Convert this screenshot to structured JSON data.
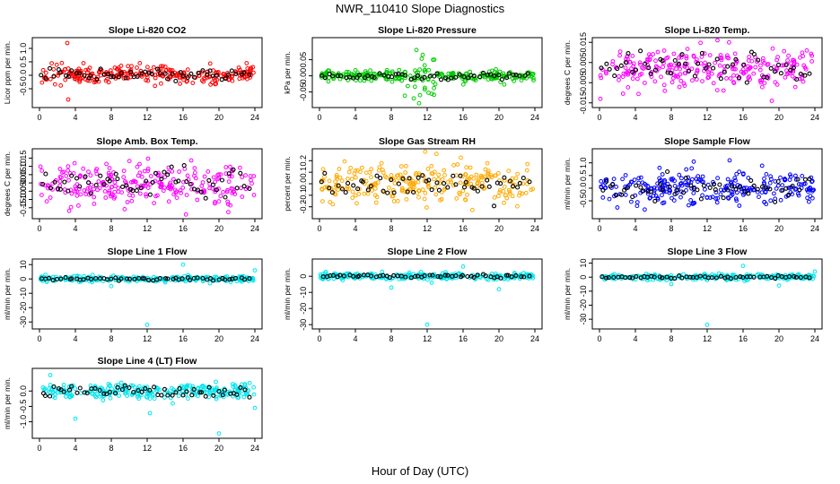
{
  "figure": {
    "title": "NWR_110410  Slope Diagnostics",
    "xlabel": "Hour of Day (UTC)"
  },
  "chart_data": [
    {
      "type": "scatter",
      "title": "Slope Li-820 CO2",
      "ylabel": "Licor ppm per min.",
      "color": "#ff0000",
      "xlim": [
        0,
        24
      ],
      "xticks": [
        0,
        4,
        8,
        12,
        16,
        20,
        24
      ],
      "ylim": [
        -1.1,
        1.3
      ],
      "yticks": [
        -0.5,
        0.0,
        0.5,
        1.0
      ],
      "ytick_labels": [
        "-0.5",
        "0.0",
        "0.5",
        "1.0"
      ],
      "center": 0.02,
      "spread": 0.16,
      "outliers": [
        [
          3.1,
          1.2
        ],
        [
          3.2,
          -0.9
        ],
        [
          4.9,
          0.45
        ]
      ],
      "black_spread": 0.1
    },
    {
      "type": "scatter",
      "title": "Slope Li-820 Pressure",
      "ylabel": "kPa per min.",
      "color": "#00cc00",
      "xlim": [
        0,
        24
      ],
      "xticks": [
        0,
        4,
        8,
        12,
        16,
        20,
        24
      ],
      "ylim": [
        -0.09,
        0.11
      ],
      "yticks": [
        -0.05,
        0.0,
        0.05
      ],
      "ytick_labels": [
        "-0.05",
        "0.00",
        "0.05"
      ],
      "center": 0.0,
      "spread": 0.008,
      "outliers": [
        [
          10.8,
          0.08
        ],
        [
          11.2,
          -0.06
        ],
        [
          10.5,
          -0.07
        ],
        [
          11.5,
          0.065
        ],
        [
          11.1,
          -0.085
        ],
        [
          12.8,
          0.05
        ]
      ],
      "black_spread": 0.006
    },
    {
      "type": "scatter",
      "title": "Slope Li-820 Temp.",
      "ylabel": "degrees C per min.",
      "color": "#ff00ff",
      "xlim": [
        0,
        24
      ],
      "xticks": [
        0,
        4,
        8,
        12,
        16,
        20,
        24
      ],
      "ylim": [
        -0.016,
        0.016
      ],
      "yticks": [
        -0.015,
        -0.005,
        0.005,
        0.015
      ],
      "ytick_labels": [
        "-0.015",
        "-0.005",
        "0.005",
        "0.015"
      ],
      "center": 0.002,
      "spread": 0.005,
      "outliers": [
        [
          0.1,
          -0.013
        ],
        [
          19.2,
          -0.014
        ]
      ],
      "black_spread": 0.004
    },
    {
      "type": "scatter",
      "title": "Slope Amb. Box Temp.",
      "ylabel": "degrees C per min.",
      "color": "#ff00ff",
      "xlim": [
        0,
        24
      ],
      "xticks": [
        0,
        4,
        8,
        12,
        16,
        20,
        24
      ],
      "ylim": [
        -0.2,
        0.19
      ],
      "yticks": [
        -0.15,
        -0.1,
        -0.05,
        0.0,
        0.05,
        0.1,
        0.15
      ],
      "ytick_labels": [
        "-0.15",
        "-0.10",
        "-0.05",
        "0.00",
        "0.05",
        "0.10",
        "0.15"
      ],
      "center": 0.0,
      "spread": 0.06,
      "outliers": [],
      "black_spread": 0.045
    },
    {
      "type": "scatter",
      "title": "Slope Gas Stream RH",
      "ylabel": "percent per min.",
      "color": "#ffaa00",
      "xlim": [
        0,
        24
      ],
      "xticks": [
        0,
        4,
        8,
        12,
        16,
        20,
        24
      ],
      "ylim": [
        -0.28,
        0.28
      ],
      "yticks": [
        -0.2,
        -0.1,
        0.0,
        0.1,
        0.2
      ],
      "ytick_labels": [
        "-0.2",
        "-0.1",
        "0.0",
        "0.1",
        "0.2"
      ],
      "center": 0.0,
      "spread": 0.09,
      "outliers": [],
      "black_spread": 0.06
    },
    {
      "type": "scatter",
      "title": "Slope Sample Flow",
      "ylabel": "ml/min per min.",
      "color": "#0000ff",
      "xlim": [
        0,
        24
      ],
      "xticks": [
        0,
        4,
        8,
        12,
        16,
        20,
        24
      ],
      "ylim": [
        -1.1,
        1.45
      ],
      "yticks": [
        -0.5,
        0.0,
        0.5,
        1.0
      ],
      "ytick_labels": [
        "-0.5",
        "0.0",
        "0.5",
        "1.0"
      ],
      "center": 0.0,
      "spread": 0.3,
      "outliers": [
        [
          10.5,
          1.05
        ],
        [
          14.5,
          1.1
        ]
      ],
      "black_spread": 0.22
    },
    {
      "type": "scatter",
      "title": "Slope Line 1 Flow",
      "ylabel": "ml/min per min.",
      "color": "#00e5ee",
      "xlim": [
        0,
        24
      ],
      "xticks": [
        0,
        4,
        8,
        12,
        16,
        20,
        24
      ],
      "ylim": [
        -33,
        12
      ],
      "yticks": [
        -30,
        -20,
        -10,
        0,
        10
      ],
      "ytick_labels": [
        "-30",
        "-20",
        "-10",
        "0",
        "10"
      ],
      "center": 0.0,
      "spread": 1.0,
      "outliers": [
        [
          12,
          -32
        ],
        [
          16,
          10
        ],
        [
          24,
          6
        ],
        [
          8,
          -5
        ],
        [
          19,
          -3
        ]
      ],
      "black_spread": 0.5
    },
    {
      "type": "scatter",
      "title": "Slope Line 2 Flow",
      "ylabel": "ml/min per min.",
      "color": "#00e5ee",
      "xlim": [
        0,
        24
      ],
      "xticks": [
        0,
        4,
        8,
        12,
        16,
        20,
        24
      ],
      "ylim": [
        -31,
        9
      ],
      "yticks": [
        -30,
        -20,
        -10,
        0
      ],
      "ytick_labels": [
        "-30",
        "-20",
        "-10",
        "0"
      ],
      "center": 0.0,
      "spread": 1.0,
      "outliers": [
        [
          12,
          -30
        ],
        [
          16,
          6
        ],
        [
          8,
          -7
        ],
        [
          20,
          -8
        ],
        [
          12.5,
          -4
        ]
      ],
      "black_spread": 0.5
    },
    {
      "type": "scatter",
      "title": "Slope Line 3 Flow",
      "ylabel": "ml/min per min.",
      "color": "#00e5ee",
      "xlim": [
        0,
        24
      ],
      "xticks": [
        0,
        4,
        8,
        12,
        16,
        20,
        24
      ],
      "ylim": [
        -35,
        11
      ],
      "yticks": [
        -30,
        -20,
        -10,
        0,
        10
      ],
      "ytick_labels": [
        "-30",
        "-20",
        "-10",
        "0",
        "10"
      ],
      "center": 0.0,
      "spread": 1.0,
      "outliers": [
        [
          12,
          -34
        ],
        [
          16,
          8
        ],
        [
          8,
          -5
        ],
        [
          20,
          -6
        ],
        [
          24,
          4
        ]
      ],
      "black_spread": 0.5
    },
    {
      "type": "scatter",
      "title": "Slope Line 4 (LT) Flow",
      "ylabel": "ml/min per min.",
      "color": "#00e5ee",
      "xlim": [
        0,
        24
      ],
      "xticks": [
        0,
        4,
        8,
        12,
        16,
        20,
        24
      ],
      "ylim": [
        -1.45,
        0.65
      ],
      "yticks": [
        -1.0,
        -0.5,
        0.0
      ],
      "ytick_labels": [
        "-1.0",
        "-0.5",
        "0.0"
      ],
      "center": 0.0,
      "spread": 0.12,
      "outliers": [
        [
          4,
          -0.9
        ],
        [
          12.3,
          -0.72
        ],
        [
          20,
          -1.38
        ],
        [
          24,
          -0.55
        ],
        [
          1.2,
          0.52
        ]
      ],
      "black_spread": 0.1
    }
  ]
}
